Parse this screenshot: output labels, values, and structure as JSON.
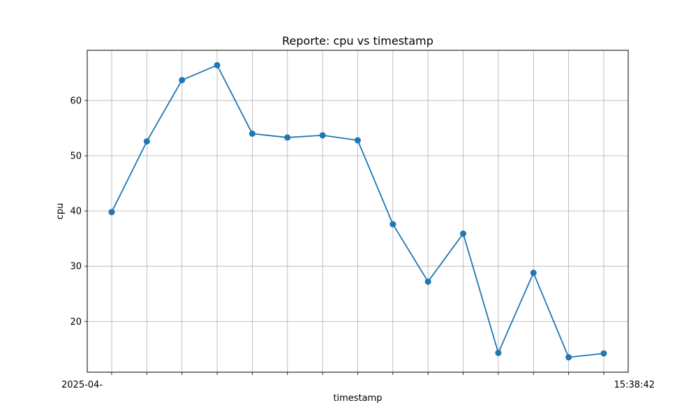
{
  "chart_data": {
    "type": "line",
    "title": "Reporte: cpu vs timestamp",
    "xlabel": "timestamp",
    "ylabel": "cpu",
    "x_first_label": "2025-04-",
    "x_last_label": "15:38:42",
    "series": [
      {
        "values": [
          39.8,
          52.6,
          63.7,
          66.4,
          54.0,
          53.3,
          53.7,
          52.8,
          37.6,
          27.2,
          35.9,
          14.3,
          28.8,
          13.5,
          14.2
        ]
      }
    ],
    "ylim": [
      10.8,
      69.1
    ],
    "yticks": [
      20,
      30,
      40,
      50,
      60
    ],
    "grid": true,
    "marker": "circle",
    "line_color": "#1f77b4"
  }
}
